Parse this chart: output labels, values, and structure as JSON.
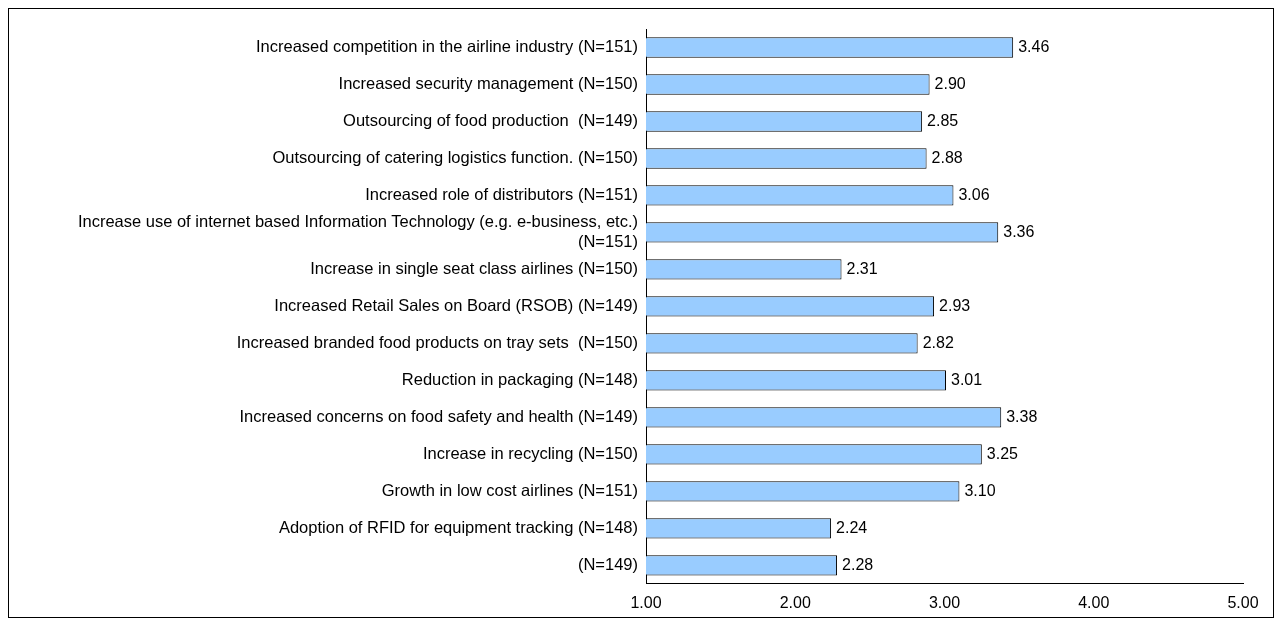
{
  "chart_data": {
    "type": "bar",
    "orientation": "horizontal",
    "categories": [
      "Increased competition in the airline industry (N=151)",
      "Increased security management (N=150)",
      "Outsourcing of food production  (N=149)",
      "Outsourcing of catering logistics function. (N=150)",
      "Increased role of distributors (N=151)",
      "Increase use of internet based Information Technology (e.g. e-business, etc.) (N=151)",
      "Increase in single seat class airlines (N=150)",
      "Increased Retail Sales on Board (RSOB) (N=149)",
      "Increased branded food products on tray sets  (N=150)",
      "Reduction in packaging (N=148)",
      "Increased concerns on food safety and health (N=149)",
      "Increase in recycling (N=150)",
      "Growth in low cost airlines (N=151)",
      "Adoption of RFID for equipment tracking (N=148)",
      "(N=149)"
    ],
    "values": [
      3.46,
      2.9,
      2.85,
      2.88,
      3.06,
      3.36,
      2.31,
      2.93,
      2.82,
      3.01,
      3.38,
      3.25,
      3.1,
      2.24,
      2.28
    ],
    "value_labels": [
      "3.46",
      "2.90",
      "2.85",
      "2.88",
      "3.06",
      "3.36",
      "2.31",
      "2.93",
      "2.82",
      "3.01",
      "3.38",
      "3.25",
      "3.10",
      "2.24",
      "2.28"
    ],
    "color": "#99ccff",
    "xlim": [
      1,
      5
    ],
    "xticks": [
      {
        "value": 1,
        "label": "1.00"
      },
      {
        "value": 2,
        "label": "2.00"
      },
      {
        "value": 3,
        "label": "3.00"
      },
      {
        "value": 4,
        "label": "4.00"
      },
      {
        "value": 5,
        "label": "5.00"
      }
    ],
    "grid": false,
    "legend": false
  }
}
